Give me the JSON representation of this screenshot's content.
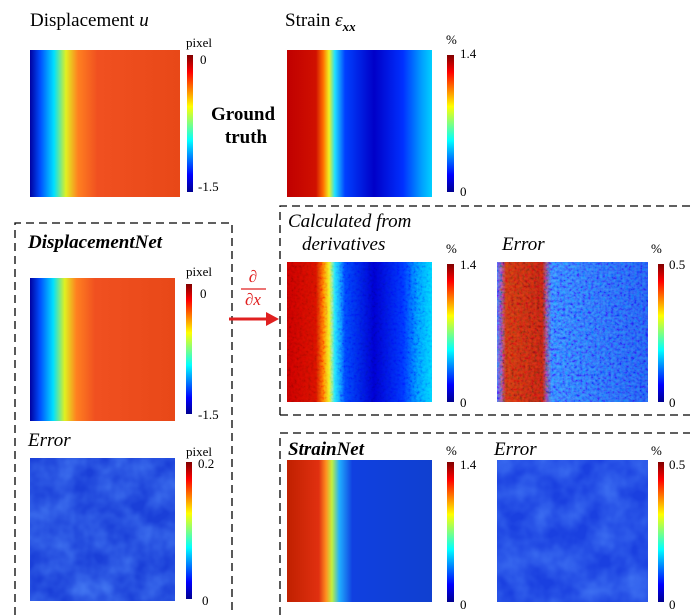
{
  "ground_truth": {
    "label_line1": "Ground",
    "label_line2": "truth",
    "displacement": {
      "title": "Displacement",
      "symbol": "u",
      "unit": "pixel",
      "max": 0,
      "min": -1.5
    },
    "strain": {
      "title": "Strain",
      "symbol": "ε",
      "subscript": "xx",
      "unit": "%",
      "max": 1.4,
      "min": 0
    }
  },
  "displacement_net": {
    "title": "DisplacementNet",
    "prediction": {
      "unit": "pixel",
      "max": 0,
      "min": -1.5
    },
    "error": {
      "title": "Error",
      "unit": "pixel",
      "max": 0.2,
      "min": 0
    }
  },
  "derivative": {
    "operator_numerator": "∂",
    "operator_denominator": "∂x",
    "title_line1": "Calculated from",
    "title_line2": "derivatives",
    "strain": {
      "unit": "%",
      "max": 1.4,
      "min": 0
    },
    "error": {
      "title": "Error",
      "unit": "%",
      "max": 0.5,
      "min": 0
    }
  },
  "strain_net": {
    "title": "StrainNet",
    "strain": {
      "unit": "%",
      "max": 1.4,
      "min": 0
    },
    "error": {
      "title": "Error",
      "unit": "%",
      "max": 0.5,
      "min": 0
    }
  }
}
